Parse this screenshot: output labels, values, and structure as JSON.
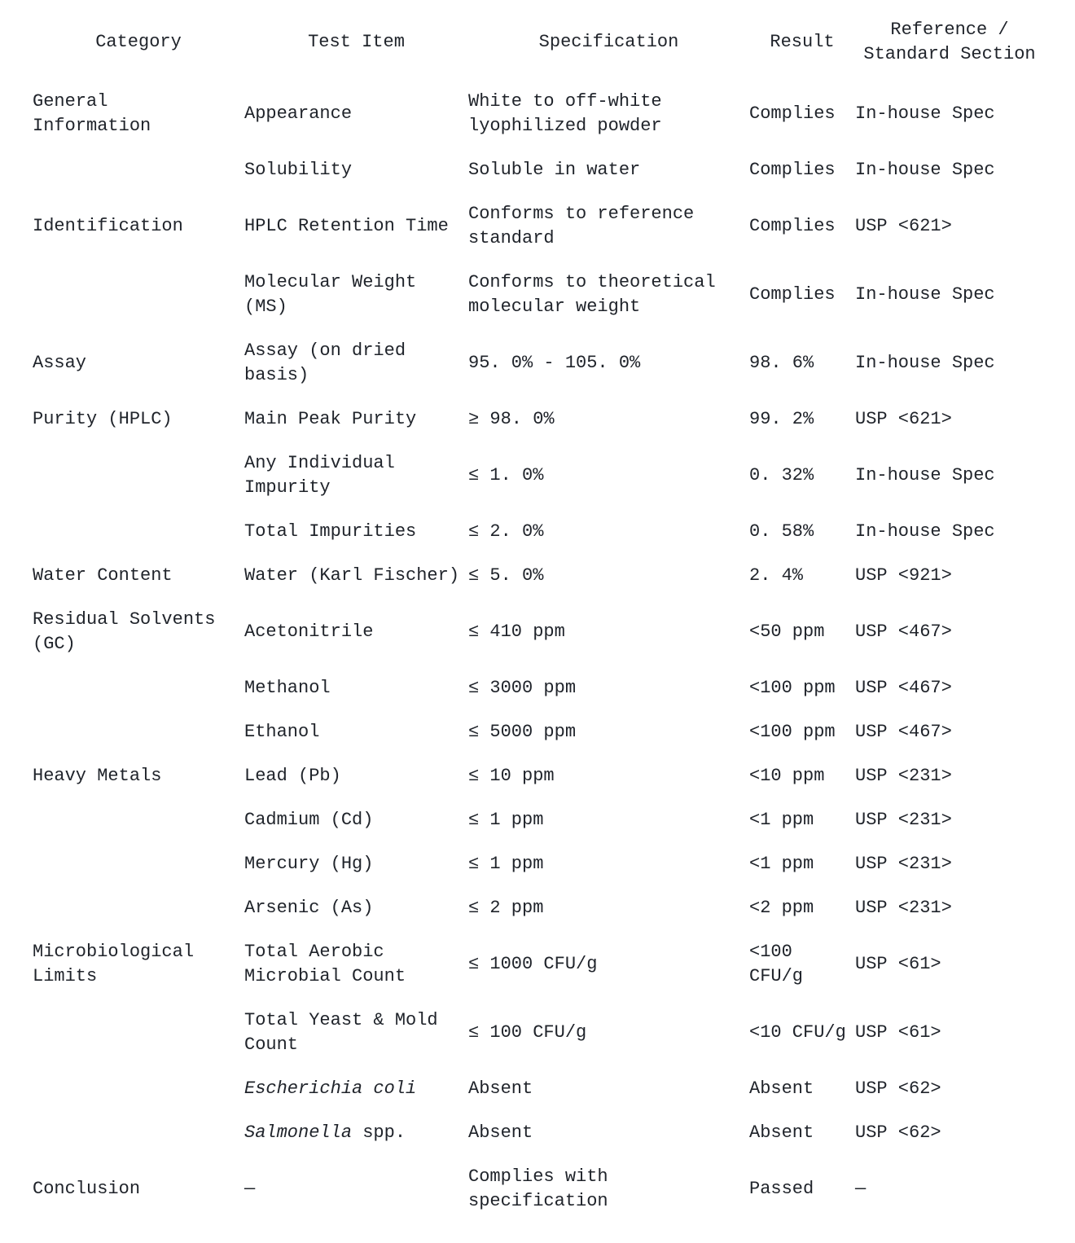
{
  "table": {
    "headers": {
      "category": "Category",
      "test_item": "Test Item",
      "specification": "Specification",
      "result": "Result",
      "reference": "Reference /\nStandard Section"
    },
    "rows": [
      {
        "category": "General\nInformation",
        "item": "Appearance",
        "spec": "White to off-white\nlyophilized powder",
        "result": "Complies",
        "ref": "In-house Spec"
      },
      {
        "category": "",
        "item": "Solubility",
        "spec": "Soluble in water",
        "result": "Complies",
        "ref": "In-house Spec"
      },
      {
        "category": "Identification",
        "item": "HPLC Retention Time",
        "spec": "Conforms to reference\nstandard",
        "result": "Complies",
        "ref": "USP <621>"
      },
      {
        "category": "",
        "item": "Molecular Weight\n(MS)",
        "spec": "Conforms to theoretical\nmolecular weight",
        "result": "Complies",
        "ref": "In-house Spec"
      },
      {
        "category": "Assay",
        "item": "Assay (on dried\nbasis)",
        "spec": "95. 0% -  105. 0%",
        "result": "98. 6%",
        "ref": "In-house Spec"
      },
      {
        "category": "Purity (HPLC)",
        "item": "Main Peak Purity",
        "spec": "≥ 98. 0%",
        "result": "99. 2%",
        "ref": "USP <621>"
      },
      {
        "category": "",
        "item": "Any Individual\nImpurity",
        "spec": "≤ 1. 0%",
        "result": "0. 32%",
        "ref": "In-house Spec"
      },
      {
        "category": "",
        "item": "Total Impurities",
        "spec": "≤ 2. 0%",
        "result": "0. 58%",
        "ref": "In-house Spec"
      },
      {
        "category": "Water Content",
        "item": "Water (Karl Fischer)",
        "spec": "≤ 5. 0%",
        "result": "2. 4%",
        "ref": "USP <921>"
      },
      {
        "category": "Residual Solvents\n(GC)",
        "item": "Acetonitrile",
        "spec": "≤ 410 ppm",
        "result": "<50 ppm",
        "ref": "USP <467>"
      },
      {
        "category": "",
        "item": "Methanol",
        "spec": "≤ 3000 ppm",
        "result": "<100 ppm",
        "ref": "USP <467>"
      },
      {
        "category": "",
        "item": "Ethanol",
        "spec": "≤ 5000 ppm",
        "result": "<100 ppm",
        "ref": "USP <467>"
      },
      {
        "category": "Heavy Metals",
        "item": "Lead (Pb)",
        "spec": "≤ 10 ppm",
        "result": "<10 ppm",
        "ref": "USP <231>"
      },
      {
        "category": "",
        "item": "Cadmium (Cd)",
        "spec": "≤ 1 ppm",
        "result": "<1 ppm",
        "ref": "USP <231>"
      },
      {
        "category": "",
        "item": "Mercury (Hg)",
        "spec": "≤ 1 ppm",
        "result": "<1 ppm",
        "ref": "USP <231>"
      },
      {
        "category": "",
        "item": "Arsenic (As)",
        "spec": "≤ 2 ppm",
        "result": "<2 ppm",
        "ref": "USP <231>"
      },
      {
        "category": "Microbiological\nLimits",
        "item": "Total Aerobic\nMicrobial Count",
        "spec": "≤ 1000 CFU/g",
        "result": "<100\nCFU/g",
        "ref": "USP <61>"
      },
      {
        "category": "",
        "item": "Total Yeast & Mold\nCount",
        "spec": "≤ 100 CFU/g",
        "result": "<10 CFU/g",
        "ref": "USP <61>"
      },
      {
        "category": "",
        "item_italic": "Escherichia coli",
        "spec": "Absent",
        "result": "Absent",
        "ref": "USP <62>"
      },
      {
        "category": "",
        "item_italic": "Salmonella",
        "item_rest": " spp.",
        "spec": "Absent",
        "result": "Absent",
        "ref": "USP <62>"
      },
      {
        "category": "Conclusion",
        "item": "—",
        "spec": "Complies with\nspecification",
        "result": "Passed",
        "ref": "—"
      }
    ]
  }
}
